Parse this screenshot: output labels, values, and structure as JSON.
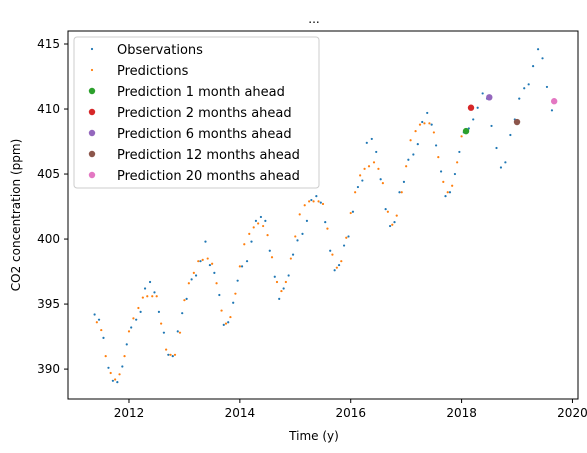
{
  "chart_data": {
    "type": "scatter",
    "title": "...",
    "xlabel": "Time (y)",
    "ylabel": "CO2 concentration (ppm)",
    "xlim": [
      2010.9,
      2020.1
    ],
    "ylim": [
      387.7,
      416.0
    ],
    "xticks": [
      2012,
      2014,
      2016,
      2018,
      2020
    ],
    "yticks": [
      390,
      395,
      400,
      405,
      410,
      415
    ],
    "grid": false,
    "legend_position": "top-left",
    "series": [
      {
        "name": "Observations",
        "marker": "point",
        "color": "#1f77b4",
        "points": [
          [
            2011.38,
            394.2
          ],
          [
            2011.46,
            393.8
          ],
          [
            2011.54,
            392.4
          ],
          [
            2011.63,
            390.1
          ],
          [
            2011.71,
            389.1
          ],
          [
            2011.79,
            389.0
          ],
          [
            2011.88,
            390.2
          ],
          [
            2011.96,
            391.9
          ],
          [
            2012.04,
            393.2
          ],
          [
            2012.13,
            393.8
          ],
          [
            2012.21,
            394.4
          ],
          [
            2012.29,
            396.2
          ],
          [
            2012.38,
            396.7
          ],
          [
            2012.46,
            395.9
          ],
          [
            2012.54,
            394.4
          ],
          [
            2012.63,
            392.8
          ],
          [
            2012.71,
            391.1
          ],
          [
            2012.79,
            391.0
          ],
          [
            2012.88,
            392.9
          ],
          [
            2012.96,
            394.3
          ],
          [
            2013.04,
            395.4
          ],
          [
            2013.13,
            396.9
          ],
          [
            2013.21,
            397.2
          ],
          [
            2013.29,
            398.3
          ],
          [
            2013.38,
            399.8
          ],
          [
            2013.46,
            398.0
          ],
          [
            2013.54,
            397.4
          ],
          [
            2013.63,
            395.7
          ],
          [
            2013.71,
            393.4
          ],
          [
            2013.79,
            393.6
          ],
          [
            2013.88,
            395.1
          ],
          [
            2013.96,
            396.8
          ],
          [
            2014.04,
            397.9
          ],
          [
            2014.13,
            398.3
          ],
          [
            2014.21,
            399.8
          ],
          [
            2014.29,
            401.4
          ],
          [
            2014.38,
            401.7
          ],
          [
            2014.46,
            401.4
          ],
          [
            2014.54,
            399.1
          ],
          [
            2014.63,
            397.1
          ],
          [
            2014.71,
            395.4
          ],
          [
            2014.79,
            396.2
          ],
          [
            2014.88,
            397.2
          ],
          [
            2014.96,
            398.8
          ],
          [
            2015.04,
            399.9
          ],
          [
            2015.13,
            400.4
          ],
          [
            2015.21,
            401.4
          ],
          [
            2015.29,
            403.0
          ],
          [
            2015.38,
            403.3
          ],
          [
            2015.46,
            402.8
          ],
          [
            2015.54,
            401.3
          ],
          [
            2015.63,
            399.1
          ],
          [
            2015.71,
            397.6
          ],
          [
            2015.79,
            398.0
          ],
          [
            2015.88,
            399.5
          ],
          [
            2015.96,
            400.2
          ],
          [
            2016.04,
            402.1
          ],
          [
            2016.13,
            404.0
          ],
          [
            2016.21,
            404.5
          ],
          [
            2016.29,
            407.4
          ],
          [
            2016.38,
            407.7
          ],
          [
            2016.46,
            406.7
          ],
          [
            2016.54,
            404.6
          ],
          [
            2016.63,
            402.3
          ],
          [
            2016.71,
            401.0
          ],
          [
            2016.79,
            401.3
          ],
          [
            2016.88,
            403.6
          ],
          [
            2016.96,
            404.4
          ],
          [
            2017.04,
            406.1
          ],
          [
            2017.13,
            406.5
          ],
          [
            2017.21,
            407.3
          ],
          [
            2017.29,
            409.0
          ],
          [
            2017.38,
            409.7
          ],
          [
            2017.46,
            408.8
          ],
          [
            2017.54,
            407.2
          ],
          [
            2017.63,
            405.2
          ],
          [
            2017.71,
            403.3
          ],
          [
            2017.79,
            403.6
          ],
          [
            2017.88,
            405.0
          ],
          [
            2017.96,
            406.7
          ],
          [
            2018.04,
            408.2
          ],
          [
            2018.13,
            408.5
          ],
          [
            2018.21,
            409.2
          ],
          [
            2018.29,
            410.1
          ],
          [
            2018.38,
            411.2
          ],
          [
            2018.46,
            410.8
          ],
          [
            2018.54,
            408.7
          ],
          [
            2018.63,
            407.0
          ],
          [
            2018.71,
            405.5
          ],
          [
            2018.79,
            405.9
          ],
          [
            2018.88,
            408.0
          ],
          [
            2018.96,
            409.2
          ],
          [
            2019.04,
            410.8
          ],
          [
            2019.13,
            411.6
          ],
          [
            2019.21,
            411.9
          ],
          [
            2019.29,
            413.3
          ],
          [
            2019.38,
            414.6
          ],
          [
            2019.46,
            413.9
          ],
          [
            2019.54,
            411.7
          ],
          [
            2019.63,
            409.9
          ]
        ]
      },
      {
        "name": "Predictions",
        "marker": "point",
        "color": "#ff7f0e",
        "points": [
          [
            2011.42,
            393.6
          ],
          [
            2011.5,
            393.0
          ],
          [
            2011.58,
            391.0
          ],
          [
            2011.67,
            389.7
          ],
          [
            2011.75,
            389.2
          ],
          [
            2011.83,
            389.6
          ],
          [
            2011.92,
            391.0
          ],
          [
            2012.0,
            392.9
          ],
          [
            2012.08,
            393.9
          ],
          [
            2012.17,
            394.7
          ],
          [
            2012.25,
            395.5
          ],
          [
            2012.33,
            395.6
          ],
          [
            2012.42,
            395.6
          ],
          [
            2012.5,
            395.6
          ],
          [
            2012.58,
            393.5
          ],
          [
            2012.67,
            391.5
          ],
          [
            2012.75,
            391.1
          ],
          [
            2012.83,
            391.1
          ],
          [
            2012.92,
            392.8
          ],
          [
            2013.0,
            395.3
          ],
          [
            2013.08,
            396.6
          ],
          [
            2013.17,
            397.4
          ],
          [
            2013.25,
            398.3
          ],
          [
            2013.33,
            398.4
          ],
          [
            2013.42,
            398.5
          ],
          [
            2013.5,
            398.1
          ],
          [
            2013.58,
            396.6
          ],
          [
            2013.67,
            394.5
          ],
          [
            2013.75,
            393.5
          ],
          [
            2013.83,
            394.0
          ],
          [
            2013.92,
            395.8
          ],
          [
            2014.0,
            397.9
          ],
          [
            2014.08,
            399.6
          ],
          [
            2014.17,
            400.4
          ],
          [
            2014.25,
            400.9
          ],
          [
            2014.33,
            401.2
          ],
          [
            2014.42,
            401.0
          ],
          [
            2014.5,
            400.3
          ],
          [
            2014.58,
            398.6
          ],
          [
            2014.67,
            396.7
          ],
          [
            2014.75,
            396.0
          ],
          [
            2014.83,
            396.7
          ],
          [
            2014.92,
            398.5
          ],
          [
            2015.0,
            400.2
          ],
          [
            2015.08,
            401.9
          ],
          [
            2015.17,
            402.6
          ],
          [
            2015.25,
            402.9
          ],
          [
            2015.33,
            402.9
          ],
          [
            2015.42,
            402.9
          ],
          [
            2015.5,
            402.7
          ],
          [
            2015.58,
            400.8
          ],
          [
            2015.67,
            398.8
          ],
          [
            2015.75,
            397.8
          ],
          [
            2015.83,
            398.3
          ],
          [
            2015.92,
            400.1
          ],
          [
            2016.0,
            402.0
          ],
          [
            2016.08,
            403.6
          ],
          [
            2016.17,
            404.9
          ],
          [
            2016.25,
            405.4
          ],
          [
            2016.33,
            405.6
          ],
          [
            2016.42,
            405.9
          ],
          [
            2016.5,
            405.4
          ],
          [
            2016.58,
            404.3
          ],
          [
            2016.67,
            402.1
          ],
          [
            2016.75,
            401.1
          ],
          [
            2016.83,
            401.8
          ],
          [
            2016.92,
            403.6
          ],
          [
            2017.0,
            405.6
          ],
          [
            2017.08,
            407.6
          ],
          [
            2017.17,
            408.3
          ],
          [
            2017.25,
            408.8
          ],
          [
            2017.33,
            408.9
          ],
          [
            2017.42,
            408.9
          ],
          [
            2017.5,
            408.2
          ],
          [
            2017.58,
            406.3
          ],
          [
            2017.67,
            404.4
          ],
          [
            2017.75,
            403.6
          ],
          [
            2017.83,
            404.1
          ],
          [
            2017.92,
            405.9
          ],
          [
            2018.0,
            407.9
          ]
        ]
      },
      {
        "name": "Prediction 1 month ahead",
        "marker": "circle",
        "color": "#2ca02c",
        "points": [
          [
            2018.08,
            408.3
          ]
        ]
      },
      {
        "name": "Prediction 2 months ahead",
        "marker": "circle",
        "color": "#d62728",
        "points": [
          [
            2018.17,
            410.1
          ]
        ]
      },
      {
        "name": "Prediction 6 months ahead",
        "marker": "circle",
        "color": "#9467bd",
        "points": [
          [
            2018.5,
            410.9
          ]
        ]
      },
      {
        "name": "Prediction 12 months ahead",
        "marker": "circle",
        "color": "#8c564b",
        "points": [
          [
            2019.0,
            409.0
          ]
        ]
      },
      {
        "name": "Prediction 20 months ahead",
        "marker": "circle",
        "color": "#e377c2",
        "points": [
          [
            2019.67,
            410.6
          ]
        ]
      }
    ]
  }
}
